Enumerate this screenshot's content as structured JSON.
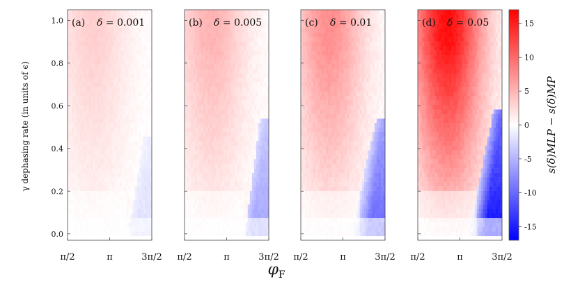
{
  "chart_data": {
    "type": "heatmap",
    "xlabel": "φ",
    "xlabel_sub": "F",
    "ylabel": "γ dephasing rate (in units of ϵ)",
    "x_range": [
      1.5708,
      4.7124
    ],
    "y_range": [
      -0.03,
      1.05
    ],
    "x_ticks": [
      {
        "value": 1.5708,
        "label": "π/2"
      },
      {
        "value": 3.1416,
        "label": "π"
      },
      {
        "value": 4.7124,
        "label": "3π/2"
      }
    ],
    "y_ticks": [
      {
        "value": 0.0,
        "label": "0.0"
      },
      {
        "value": 0.2,
        "label": "0.2"
      },
      {
        "value": 0.4,
        "label": "0.4"
      },
      {
        "value": 0.6,
        "label": "0.6"
      },
      {
        "value": 0.8,
        "label": "0.8"
      },
      {
        "value": 1.0,
        "label": "1.0"
      }
    ],
    "grid": {
      "nx": 40,
      "ny": 50
    },
    "panels": [
      {
        "tag": "(a)",
        "delta_symbol": "δ",
        "delta_text": "= 0.001",
        "delta": 0.001,
        "max_positive": 3.2,
        "max_negative": -2.0,
        "boundary_y": [
          0.45,
          0.03
        ]
      },
      {
        "tag": "(b)",
        "delta_symbol": "δ",
        "delta_text": "= 0.005",
        "delta": 0.005,
        "max_positive": 5.0,
        "max_negative": -6.0,
        "boundary_y": [
          0.55,
          0.05
        ]
      },
      {
        "tag": "(c)",
        "delta_symbol": "δ",
        "delta_text": "= 0.01",
        "delta": 0.01,
        "max_positive": 7.5,
        "max_negative": -10.0,
        "boundary_y": [
          0.55,
          0.15
        ]
      },
      {
        "tag": "(d)",
        "delta_symbol": "δ",
        "delta_text": "= 0.05",
        "delta": 0.05,
        "max_positive": 16.0,
        "max_negative": -16.0,
        "boundary_y": [
          0.58,
          0.3
        ]
      }
    ],
    "colorbar": {
      "label": "s(δ)MLP − s(δ)MP",
      "range": [
        -17,
        17
      ],
      "ticks": [
        {
          "value": 15,
          "label": "15"
        },
        {
          "value": 10,
          "label": "10"
        },
        {
          "value": 5,
          "label": "5"
        },
        {
          "value": 0,
          "label": "0"
        },
        {
          "value": -5,
          "label": "-5"
        },
        {
          "value": -10,
          "label": "-10"
        },
        {
          "value": -15,
          "label": "-15"
        }
      ],
      "colormap": "bwr"
    }
  }
}
